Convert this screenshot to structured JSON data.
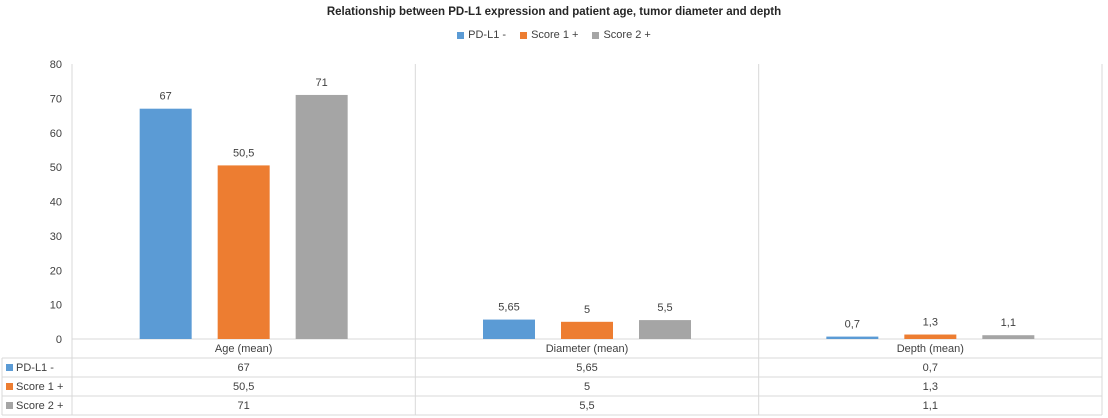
{
  "chart_data": {
    "type": "bar",
    "title": "Relationship between PD-L1 expression and patient age, tumor diameter and depth",
    "categories": [
      "Age (mean)",
      "Diameter (mean)",
      "Depth (mean)"
    ],
    "series": [
      {
        "name": "PD-L1 -",
        "values": [
          67,
          5.65,
          0.7
        ],
        "labels": [
          "67",
          "5,65",
          "0,7"
        ],
        "color": "#5b9bd5"
      },
      {
        "name": "Score 1 +",
        "values": [
          50.5,
          5,
          1.3
        ],
        "labels": [
          "50,5",
          "5",
          "1,3"
        ],
        "color": "#ed7d31"
      },
      {
        "name": "Score 2 +",
        "values": [
          71,
          5.5,
          1.1
        ],
        "labels": [
          "71",
          "5,5",
          "1,1"
        ],
        "color": "#a5a5a5"
      }
    ],
    "ylim": [
      0,
      80
    ],
    "yticks": [
      0,
      10,
      20,
      30,
      40,
      50,
      60,
      70,
      80
    ],
    "xlabel": "",
    "ylabel": "",
    "legend_position": "top",
    "data_table": true,
    "gridlines": false
  }
}
